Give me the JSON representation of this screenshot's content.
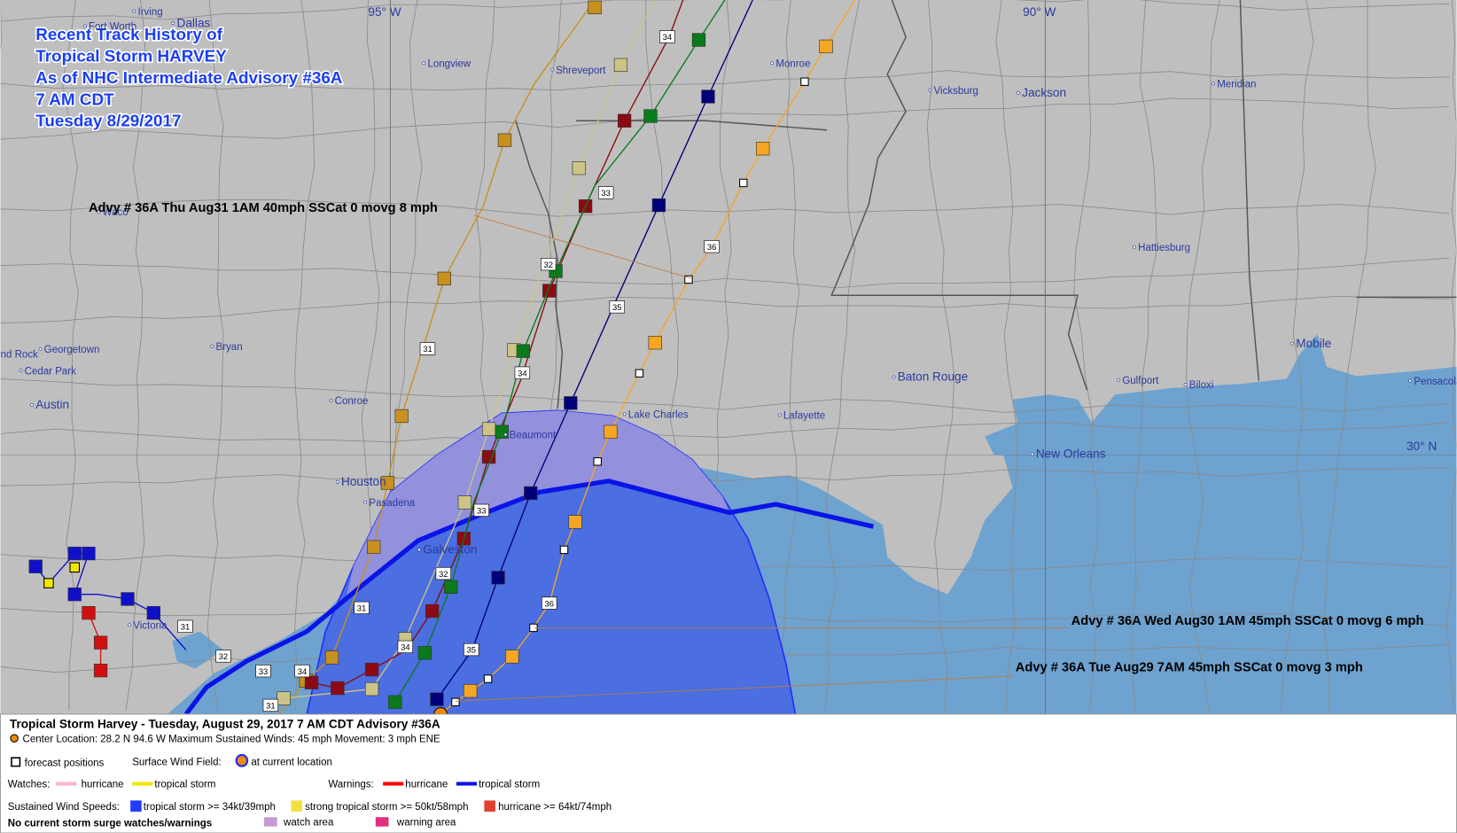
{
  "title": [
    "Recent Track History of",
    "Tropical Storm HARVEY",
    "As of NHC Intermediate Advisory #36A",
    "7 AM CDT",
    "Tuesday 8/29/2017"
  ],
  "grid_labels": [
    "95° W",
    "90° W",
    "30° N"
  ],
  "cities": [
    "Irving",
    "Fort Worth",
    "Dallas",
    "Waco",
    "Longview",
    "Shreveport",
    "Monroe",
    "Vicksburg",
    "Jackson",
    "Meridian",
    "Hattiesburg",
    "Mobile",
    "Gulfport",
    "Biloxi",
    "Pensacola",
    "New Orleans",
    "Baton Rouge",
    "Lafayette",
    "Lake Charles",
    "Beaumont",
    "Houston",
    "Pasadena",
    "Galveston",
    "Victoria",
    "Austin",
    "Round Rock",
    "Georgetown",
    "Cedar Park",
    "Bryan",
    "Conroe"
  ],
  "advisories": [
    "Advy # 36A Thu Aug31 1AM  40mph SSCat 0 movg 8 mph",
    "Advy # 36A Wed Aug30 1AM  45mph SSCat 0 movg 6 mph",
    "Advy # 36A Tue Aug29 7AM  45mph SSCat 0 movg 3 mph"
  ],
  "track_labels": [
    "34",
    "33",
    "32",
    "35",
    "36",
    "31",
    "34",
    "33",
    "32",
    "31",
    "36",
    "35",
    "34",
    "31",
    "32",
    "33",
    "34",
    "31"
  ],
  "legend": {
    "heading": "Tropical Storm Harvey  -  Tuesday, August 29, 2017  7 AM CDT   Advisory #36A",
    "center": "Center Location: 28.2 N  94.6 W   Maximum Sustained Winds: 45 mph  Movement: 3 mph ENE",
    "forecast": "forecast positions",
    "surface_wind": "Surface Wind Field:",
    "current": "at current location",
    "watches": "Watches:",
    "watch_hurricane": "hurricane",
    "watch_ts": "tropical storm",
    "warnings": "Warnings:",
    "warn_hurricane": "hurricane",
    "warn_ts": "tropical storm",
    "sustained": "Sustained Wind Speeds:",
    "ts": "tropical storm >= 34kt/39mph",
    "sts": "strong tropical storm >= 50kt/58mph",
    "hu": "hurricane >= 64kt/74mph",
    "surge": "No current storm surge watches/warnings",
    "watch_area": "watch area",
    "warning_area": "warning area"
  }
}
